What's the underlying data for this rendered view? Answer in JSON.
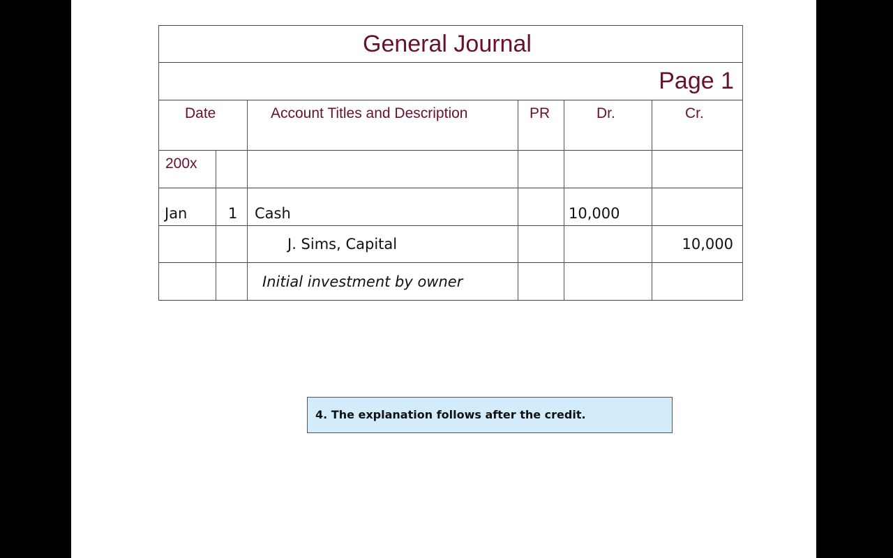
{
  "journal": {
    "title": "General Journal",
    "page": "Page 1",
    "headers": {
      "date": "Date",
      "account": "Account Titles and Description",
      "pr": "PR",
      "dr": "Dr.",
      "cr": "Cr."
    },
    "year": "200x",
    "entries": [
      {
        "month": "Jan",
        "day": "1",
        "account": "Cash",
        "dr": "10,000",
        "cr": ""
      },
      {
        "month": "",
        "day": "",
        "account": "J. Sims, Capital",
        "dr": "",
        "cr": "10,000"
      }
    ],
    "explanation": "Initial investment by owner"
  },
  "callout": {
    "text": "4.  The explanation follows after the credit.",
    "background": "#d3ecfb"
  },
  "colors": {
    "heading": "#6b0f2e"
  }
}
